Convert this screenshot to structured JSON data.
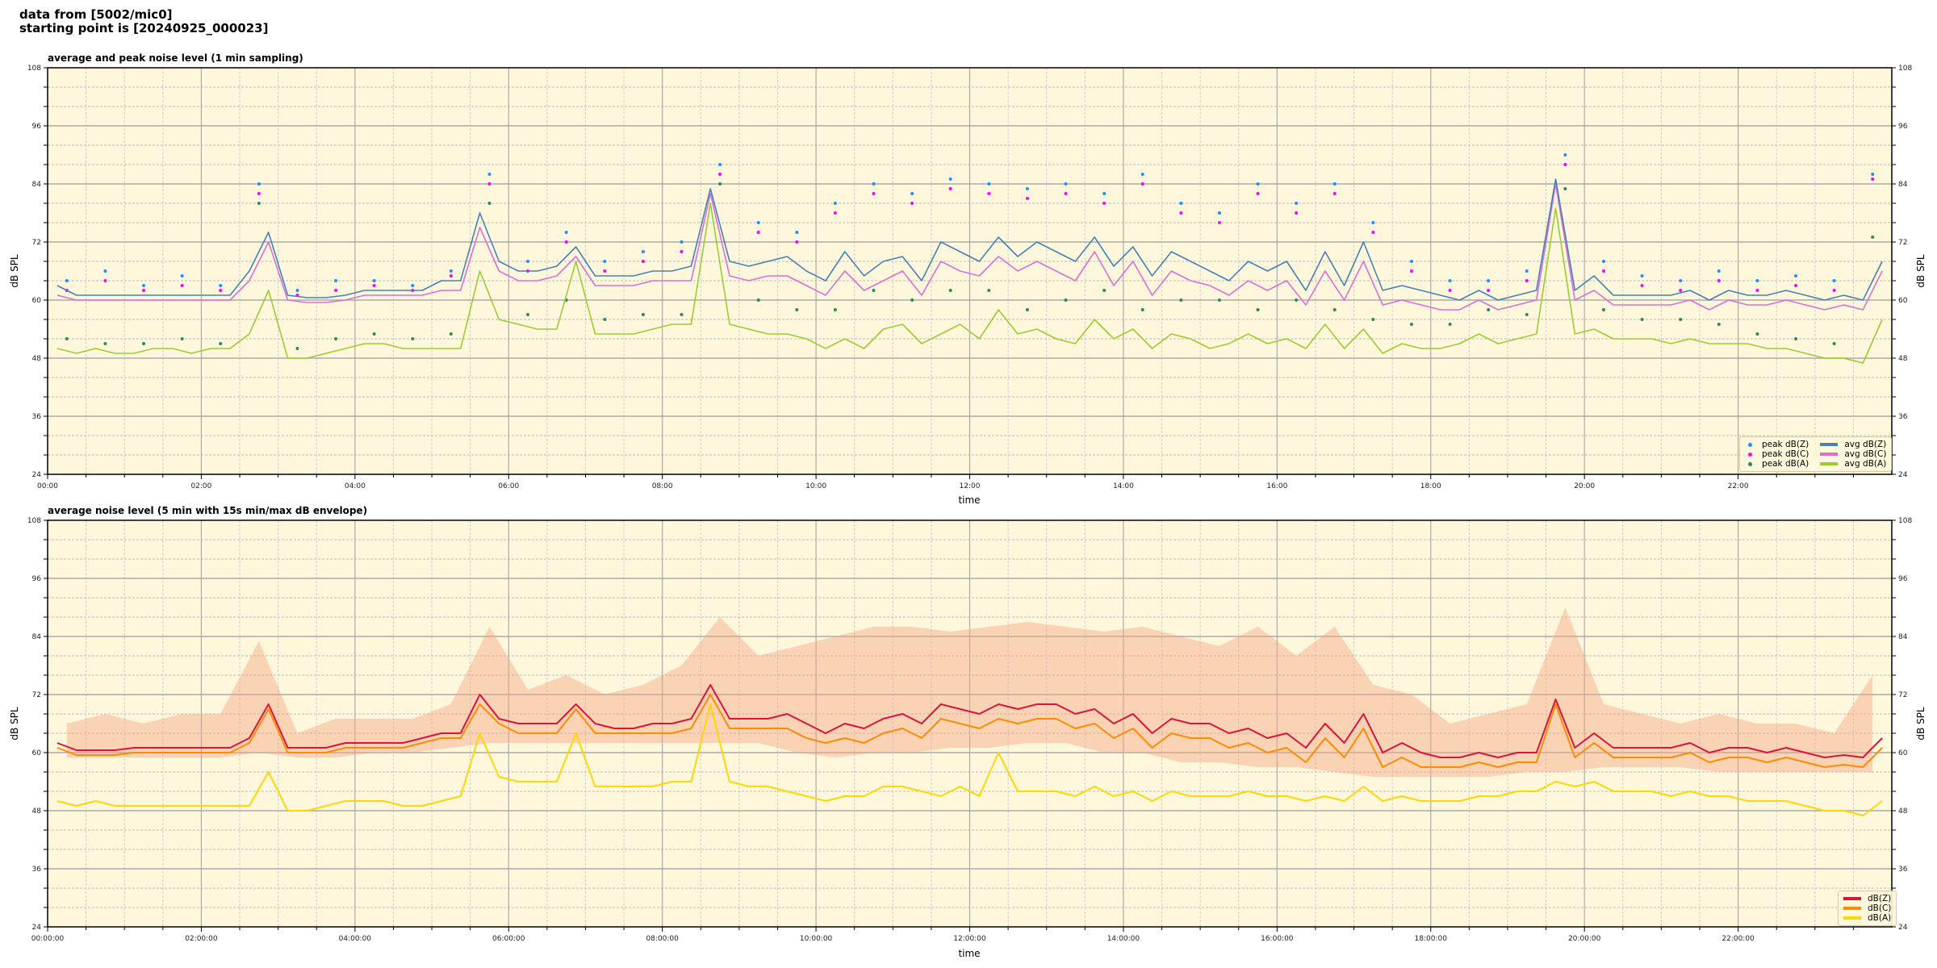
{
  "header": {
    "line1": "data from [5002/mic0]",
    "line2": "starting point is [20240925_000023]"
  },
  "chart_data": [
    {
      "type": "line",
      "title": "average and peak noise level (1 min sampling)",
      "xlabel": "time",
      "ylabel": "dB SPL",
      "ylim": [
        24,
        108
      ],
      "yticks": [
        24,
        36,
        48,
        60,
        72,
        84,
        96,
        108
      ],
      "xlim_hours": [
        0,
        24
      ],
      "xtick_labels": [
        "00:00",
        "02:00",
        "04:00",
        "06:00",
        "08:00",
        "10:00",
        "12:00",
        "14:00",
        "16:00",
        "18:00",
        "20:00",
        "22:00"
      ],
      "grid": true,
      "legend_position": "bottom-right",
      "background": "#fff7dc",
      "line_interval_minutes": 15,
      "scatter_interval_minutes": 30,
      "series": [
        {
          "name": "avg dB(Z)",
          "kind": "line",
          "color": "#4682b4",
          "values": [
            63,
            61,
            61,
            61,
            61,
            61,
            61,
            61,
            61,
            61,
            66,
            74,
            61,
            60.5,
            60.5,
            61,
            62,
            62,
            62,
            62,
            64,
            64,
            78,
            68,
            66,
            66,
            67,
            71,
            65,
            65,
            65,
            66,
            66,
            67,
            83,
            68,
            67,
            68,
            69,
            66,
            64,
            70,
            65,
            68,
            69,
            64,
            72,
            70,
            68,
            73,
            69,
            72,
            70,
            68,
            73,
            67,
            71,
            65,
            70,
            68,
            66,
            64,
            68,
            66,
            68,
            62,
            70,
            63,
            72,
            62,
            63,
            62,
            61,
            60,
            62,
            60,
            61,
            62,
            85,
            62,
            65,
            61,
            61,
            61,
            61,
            62,
            60,
            62,
            61,
            61,
            62,
            61,
            60,
            61,
            60,
            68
          ]
        },
        {
          "name": "avg dB(C)",
          "kind": "line",
          "color": "#da70d6",
          "values": [
            61,
            60,
            60,
            60,
            60,
            60,
            60,
            60,
            60,
            60,
            64,
            72,
            60,
            59.5,
            59.5,
            60,
            61,
            61,
            61,
            61,
            62,
            62,
            75,
            66,
            64,
            64,
            65,
            69,
            63,
            63,
            63,
            64,
            64,
            64,
            82,
            65,
            64,
            65,
            65,
            63,
            61,
            66,
            62,
            64,
            66,
            61,
            68,
            66,
            65,
            69,
            66,
            68,
            66,
            64,
            70,
            63,
            68,
            61,
            66,
            64,
            63,
            61,
            64,
            62,
            64,
            59,
            66,
            60,
            68,
            59,
            60,
            59,
            58,
            58,
            60,
            58,
            59,
            60,
            84,
            60,
            62,
            59,
            59,
            59,
            59,
            60,
            58,
            60,
            59,
            59,
            60,
            59,
            58,
            59,
            58,
            66
          ]
        },
        {
          "name": "avg dB(A)",
          "kind": "line",
          "color": "#9acd32",
          "values": [
            50,
            49,
            50,
            49,
            49,
            50,
            50,
            49,
            50,
            50,
            53,
            62,
            48,
            48,
            49,
            50,
            51,
            51,
            50,
            50,
            50,
            50,
            66,
            56,
            55,
            54,
            54,
            68,
            53,
            53,
            53,
            54,
            55,
            55,
            80,
            55,
            54,
            53,
            53,
            52,
            50,
            52,
            50,
            54,
            55,
            51,
            53,
            55,
            52,
            58,
            53,
            54,
            52,
            51,
            56,
            52,
            54,
            50,
            53,
            52,
            50,
            51,
            53,
            51,
            52,
            50,
            55,
            50,
            54,
            49,
            51,
            50,
            50,
            51,
            53,
            51,
            52,
            53,
            79,
            53,
            54,
            52,
            52,
            52,
            51,
            52,
            51,
            51,
            51,
            50,
            50,
            49,
            48,
            48,
            47,
            56
          ]
        },
        {
          "name": "peak dB(Z)",
          "kind": "scatter",
          "color": "#1e90ff",
          "values": [
            64,
            66,
            63,
            65,
            63,
            84,
            62,
            64,
            64,
            63,
            66,
            86,
            68,
            74,
            68,
            70,
            72,
            88,
            76,
            74,
            80,
            84,
            82,
            85,
            84,
            83,
            84,
            82,
            86,
            80,
            78,
            84,
            80,
            84,
            76,
            68,
            64,
            64,
            66,
            90,
            68,
            65,
            64,
            66,
            64,
            65,
            64,
            86
          ]
        },
        {
          "name": "peak dB(C)",
          "kind": "scatter",
          "color": "#ff00ff",
          "values": [
            62,
            64,
            62,
            63,
            62,
            82,
            61,
            62,
            63,
            62,
            65,
            84,
            66,
            72,
            66,
            68,
            70,
            86,
            74,
            72,
            78,
            82,
            80,
            83,
            82,
            81,
            82,
            80,
            84,
            78,
            76,
            82,
            78,
            82,
            74,
            66,
            62,
            62,
            64,
            88,
            66,
            63,
            62,
            64,
            62,
            63,
            62,
            85
          ]
        },
        {
          "name": "peak dB(A)",
          "kind": "scatter",
          "color": "#2e8b57",
          "values": [
            52,
            51,
            51,
            52,
            51,
            80,
            50,
            52,
            53,
            52,
            53,
            80,
            57,
            60,
            56,
            57,
            57,
            84,
            60,
            58,
            58,
            62,
            60,
            62,
            62,
            58,
            60,
            62,
            58,
            60,
            60,
            58,
            60,
            58,
            56,
            55,
            55,
            58,
            57,
            83,
            58,
            56,
            56,
            55,
            53,
            52,
            51,
            73
          ]
        }
      ]
    },
    {
      "type": "line",
      "title": "average noise level (5 min with 15s min/max dB envelope)",
      "xlabel": "time",
      "ylabel": "dB SPL",
      "ylim": [
        24,
        108
      ],
      "yticks": [
        24,
        36,
        48,
        60,
        72,
        84,
        96,
        108
      ],
      "xlim_hours": [
        0,
        24
      ],
      "xtick_labels": [
        "00:00:00",
        "02:00:00",
        "04:00:00",
        "06:00:00",
        "08:00:00",
        "10:00:00",
        "12:00:00",
        "14:00:00",
        "16:00:00",
        "18:00:00",
        "20:00:00",
        "22:00:00"
      ],
      "grid": true,
      "legend_position": "bottom-right",
      "background": "#fff7dc",
      "line_interval_minutes": 15,
      "envelope_interval_minutes": 30,
      "envelope": {
        "color": "#f4a582",
        "min": [
          59,
          59,
          59,
          59,
          59,
          60,
          59,
          59,
          60,
          60,
          61,
          62,
          62,
          62,
          62,
          62,
          62,
          62,
          62,
          60,
          59,
          60,
          60,
          61,
          61,
          62,
          62,
          60,
          60,
          58,
          58,
          57,
          57,
          56,
          55,
          55,
          55,
          55,
          56,
          56,
          57,
          57,
          57,
          56,
          56,
          56,
          56,
          56
        ],
        "max": [
          66,
          68,
          66,
          68,
          68,
          83,
          64,
          67,
          67,
          67,
          70,
          86,
          73,
          76,
          72,
          74,
          78,
          88,
          80,
          82,
          84,
          86,
          86,
          85,
          86,
          87,
          86,
          85,
          86,
          84,
          82,
          86,
          80,
          86,
          74,
          72,
          66,
          68,
          70,
          90,
          70,
          68,
          66,
          68,
          66,
          66,
          64,
          76
        ]
      },
      "series": [
        {
          "name": "dB(Z)",
          "kind": "line",
          "color": "#dc143c",
          "values": [
            62,
            60.5,
            60.5,
            60.5,
            61,
            61,
            61,
            61,
            61,
            61,
            63,
            70,
            61,
            61,
            61,
            62,
            62,
            62,
            62,
            63,
            64,
            64,
            72,
            67,
            66,
            66,
            66,
            70,
            66,
            65,
            65,
            66,
            66,
            67,
            74,
            67,
            67,
            67,
            68,
            66,
            64,
            66,
            65,
            67,
            68,
            66,
            70,
            69,
            68,
            70,
            69,
            70,
            70,
            68,
            69,
            66,
            68,
            64,
            67,
            66,
            66,
            64,
            65,
            63,
            64,
            61,
            66,
            62,
            68,
            60,
            62,
            60,
            59,
            59,
            60,
            59,
            60,
            60,
            71,
            61,
            64,
            61,
            61,
            61,
            61,
            62,
            60,
            61,
            61,
            60,
            61,
            60,
            59,
            59.5,
            59,
            63
          ]
        },
        {
          "name": "dB(C)",
          "kind": "line",
          "color": "#ff8c00",
          "values": [
            61,
            59.5,
            59.5,
            59.5,
            60,
            60,
            60,
            60,
            60,
            60,
            62,
            69,
            60,
            60,
            60,
            61,
            61,
            61,
            61,
            62,
            63,
            63,
            70,
            66,
            64,
            64,
            64,
            69,
            64,
            64,
            64,
            64,
            64,
            65,
            72,
            65,
            65,
            65,
            65,
            63,
            62,
            63,
            62,
            64,
            65,
            63,
            67,
            66,
            65,
            67,
            66,
            67,
            67,
            65,
            66,
            63,
            65,
            61,
            64,
            63,
            63,
            61,
            62,
            60,
            61,
            58,
            63,
            59,
            65,
            57,
            59,
            57,
            57,
            57,
            58,
            57,
            58,
            58,
            70,
            59,
            62,
            59,
            59,
            59,
            59,
            60,
            58,
            59,
            59,
            58,
            59,
            58,
            57,
            57.5,
            57,
            61
          ]
        },
        {
          "name": "dB(A)",
          "kind": "line",
          "color": "#ffd700",
          "values": [
            50,
            49,
            50,
            49,
            49,
            49,
            49,
            49,
            49,
            49,
            49,
            56,
            48,
            48,
            49,
            50,
            50,
            50,
            49,
            49,
            50,
            51,
            64,
            55,
            54,
            54,
            54,
            64,
            53,
            53,
            53,
            53,
            54,
            54,
            70,
            54,
            53,
            53,
            52,
            51,
            50,
            51,
            51,
            53,
            53,
            52,
            51,
            53,
            51,
            60,
            52,
            52,
            52,
            51,
            53,
            51,
            52,
            50,
            52,
            51,
            51,
            51,
            52,
            51,
            51,
            50,
            51,
            50,
            53,
            50,
            51,
            50,
            50,
            50,
            51,
            51,
            52,
            52,
            54,
            53,
            54,
            52,
            52,
            52,
            51,
            52,
            51,
            51,
            50,
            50,
            50,
            49,
            48,
            48,
            47,
            50
          ]
        }
      ]
    }
  ]
}
